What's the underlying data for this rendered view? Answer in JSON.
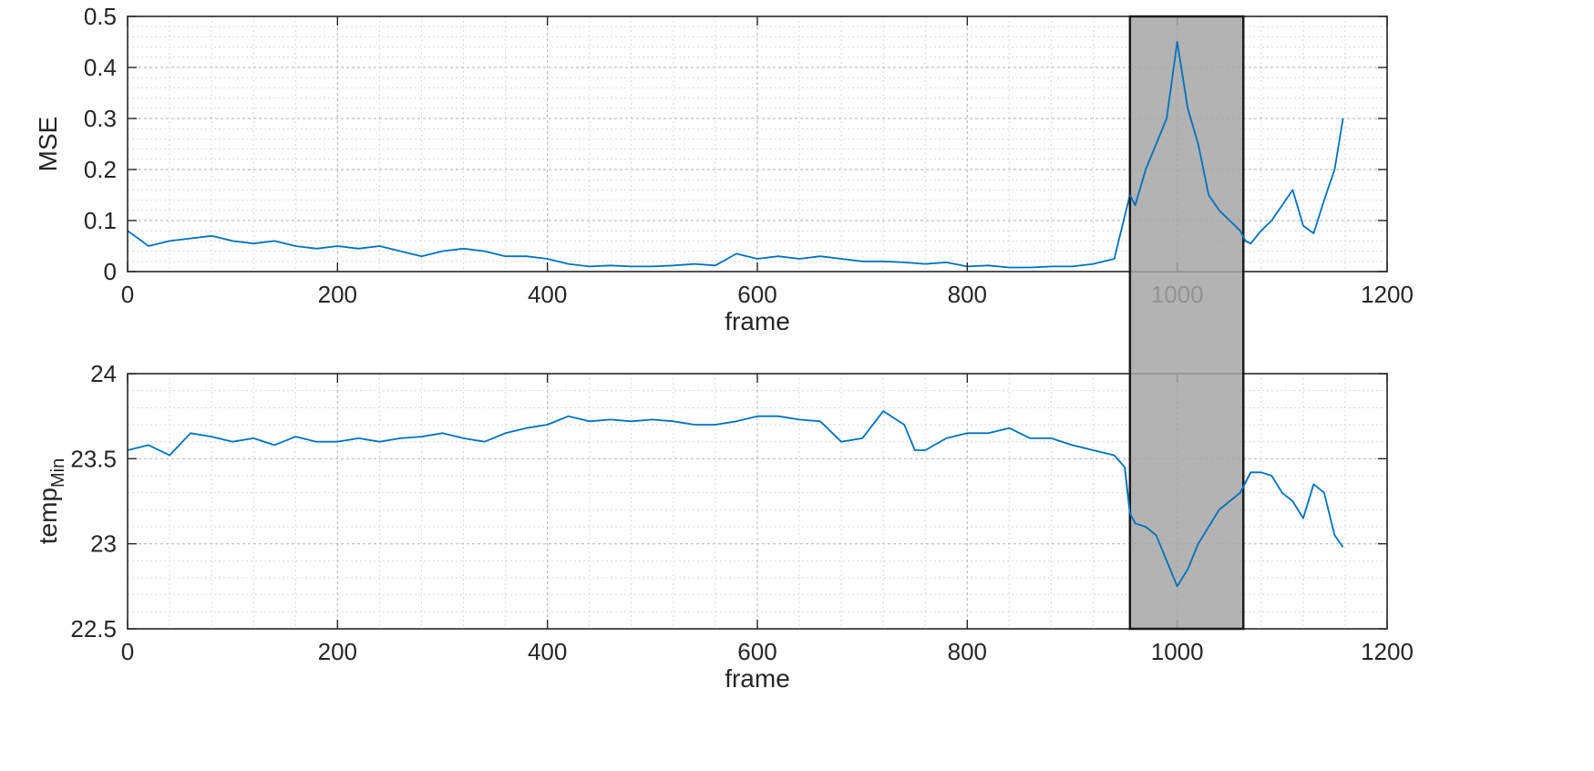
{
  "chart_data": [
    {
      "type": "line",
      "ylabel": "MSE",
      "xlabel": "frame",
      "xlim": [
        0,
        1200
      ],
      "ylim": [
        0,
        0.5
      ],
      "xticks": [
        0,
        200,
        400,
        600,
        800,
        1000,
        1200
      ],
      "yticks": [
        0,
        0.1,
        0.2,
        0.3,
        0.4,
        0.5
      ],
      "ytick_labels": [
        "0",
        "0.1",
        "0.2",
        "0.3",
        "0.4",
        "0.5"
      ],
      "grid": true,
      "series": [
        {
          "name": "MSE",
          "color": "#0072BD",
          "x": [
            0,
            20,
            40,
            60,
            80,
            100,
            120,
            140,
            160,
            180,
            200,
            220,
            240,
            260,
            280,
            300,
            320,
            340,
            360,
            380,
            400,
            420,
            440,
            460,
            480,
            500,
            520,
            540,
            560,
            580,
            600,
            620,
            640,
            660,
            680,
            700,
            720,
            740,
            760,
            780,
            800,
            820,
            840,
            860,
            880,
            900,
            920,
            940,
            955,
            960,
            970,
            980,
            990,
            1000,
            1010,
            1020,
            1030,
            1040,
            1050,
            1060,
            1065,
            1070,
            1080,
            1090,
            1100,
            1110,
            1120,
            1130,
            1140,
            1150,
            1158
          ],
          "values": [
            0.08,
            0.05,
            0.06,
            0.065,
            0.07,
            0.06,
            0.055,
            0.06,
            0.05,
            0.045,
            0.05,
            0.045,
            0.05,
            0.04,
            0.03,
            0.04,
            0.045,
            0.04,
            0.03,
            0.03,
            0.025,
            0.015,
            0.01,
            0.012,
            0.01,
            0.01,
            0.012,
            0.015,
            0.012,
            0.035,
            0.025,
            0.03,
            0.025,
            0.03,
            0.025,
            0.02,
            0.02,
            0.018,
            0.015,
            0.018,
            0.01,
            0.012,
            0.008,
            0.008,
            0.01,
            0.01,
            0.015,
            0.025,
            0.15,
            0.13,
            0.2,
            0.25,
            0.3,
            0.45,
            0.32,
            0.25,
            0.15,
            0.12,
            0.1,
            0.08,
            0.06,
            0.055,
            0.08,
            0.1,
            0.13,
            0.16,
            0.09,
            0.075,
            0.14,
            0.2,
            0.3
          ]
        }
      ]
    },
    {
      "type": "line",
      "ylabel": "temp",
      "ylabel_subscript": "Min",
      "xlabel": "frame",
      "xlim": [
        0,
        1200
      ],
      "ylim": [
        22.5,
        24
      ],
      "xticks": [
        0,
        200,
        400,
        600,
        800,
        1000,
        1200
      ],
      "yticks": [
        22.5,
        23,
        23.5,
        24
      ],
      "ytick_labels": [
        "22.5",
        "23",
        "23.5",
        "24"
      ],
      "grid": true,
      "series": [
        {
          "name": "tempMin",
          "color": "#0072BD",
          "x": [
            0,
            20,
            40,
            60,
            80,
            100,
            120,
            140,
            160,
            180,
            200,
            220,
            240,
            260,
            280,
            300,
            320,
            340,
            360,
            380,
            400,
            420,
            440,
            460,
            480,
            500,
            520,
            540,
            560,
            580,
            600,
            620,
            640,
            660,
            680,
            700,
            720,
            740,
            750,
            760,
            780,
            800,
            820,
            840,
            860,
            880,
            900,
            920,
            940,
            950,
            955,
            960,
            970,
            980,
            990,
            1000,
            1010,
            1020,
            1030,
            1040,
            1050,
            1060,
            1070,
            1080,
            1090,
            1100,
            1110,
            1120,
            1130,
            1140,
            1150,
            1158
          ],
          "values": [
            23.55,
            23.58,
            23.52,
            23.65,
            23.63,
            23.6,
            23.62,
            23.58,
            23.63,
            23.6,
            23.6,
            23.62,
            23.6,
            23.62,
            23.63,
            23.65,
            23.62,
            23.6,
            23.65,
            23.68,
            23.7,
            23.75,
            23.72,
            23.73,
            23.72,
            23.73,
            23.72,
            23.7,
            23.7,
            23.72,
            23.75,
            23.75,
            23.73,
            23.72,
            23.6,
            23.62,
            23.78,
            23.7,
            23.55,
            23.55,
            23.62,
            23.65,
            23.65,
            23.68,
            23.62,
            23.62,
            23.58,
            23.55,
            23.52,
            23.45,
            23.18,
            23.12,
            23.1,
            23.05,
            22.9,
            22.75,
            22.85,
            23.0,
            23.1,
            23.2,
            23.25,
            23.3,
            23.42,
            23.42,
            23.4,
            23.3,
            23.25,
            23.15,
            23.35,
            23.3,
            23.05,
            22.98
          ]
        }
      ]
    }
  ],
  "highlight": {
    "x_start": 955,
    "x_end": 1063,
    "fill": "#a6a6a6",
    "edge": "#1a1a1a"
  }
}
